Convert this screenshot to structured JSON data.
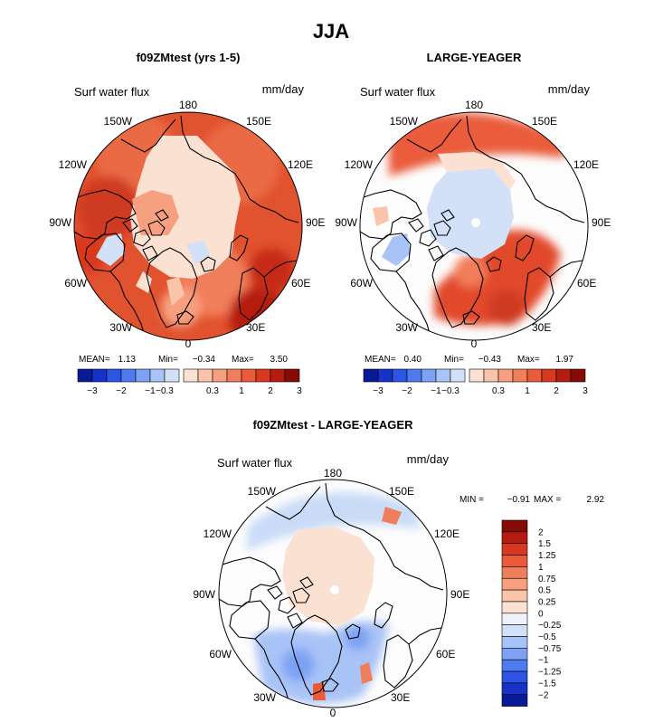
{
  "page_title": "JJA",
  "colors": {
    "blues": [
      "#081a96",
      "#1632c8",
      "#2c55e6",
      "#4f7bf0",
      "#7da2f4",
      "#a8c3f6",
      "#d2e1f8"
    ],
    "reds": [
      "#fbe1d2",
      "#f9c4aa",
      "#f6a080",
      "#f17e5a",
      "#ea5b3a",
      "#d9371f",
      "#b51c10",
      "#860b05"
    ],
    "diff_scale": [
      "#081a96",
      "#1632c8",
      "#2c55e6",
      "#4f7bf0",
      "#7da2f4",
      "#a8c3f6",
      "#d2e1f8",
      "#eef3fb",
      "#fbe1d2",
      "#f9c4aa",
      "#f6a080",
      "#f17e5a",
      "#ea5b3a",
      "#d9371f",
      "#b51c10",
      "#860b05"
    ],
    "land": "#fdfdfd",
    "coast": "#000000"
  },
  "chart_data": [
    {
      "type": "heatmap",
      "projection": "north-polar-stereographic",
      "title": "f09ZMtest (yrs 1-5)",
      "variable": "Surf water flux",
      "units": "mm/day",
      "lon_labels": [
        "180",
        "150E",
        "120E",
        "90E",
        "60E",
        "30E",
        "0",
        "30W",
        "60W",
        "90W",
        "120W",
        "150W"
      ],
      "stats": {
        "mean_label": "MEAN=",
        "mean": "1.13",
        "min_label": "Min=",
        "min": "−0.34",
        "max_label": "Max=",
        "max": "3.50"
      },
      "colorbar_ticks": [
        "−3",
        "−2",
        "−1",
        "−0.3",
        "0.3",
        "1",
        "2",
        "3"
      ],
      "pattern": "mostly positive flux across the Arctic; strongest over Eurasia and North Atlantic"
    },
    {
      "type": "heatmap",
      "projection": "north-polar-stereographic",
      "title": "LARGE-YEAGER",
      "variable": "Surf water flux",
      "units": "mm/day",
      "lon_labels": [
        "180",
        "150E",
        "120E",
        "90E",
        "60E",
        "30E",
        "0",
        "30W",
        "60W",
        "90W",
        "120W",
        "150W"
      ],
      "stats": {
        "mean_label": "MEAN=",
        "mean": "0.40",
        "min_label": "Min=",
        "min": "−0.43",
        "max_label": "Max=",
        "max": "1.97"
      },
      "colorbar_ticks": [
        "−3",
        "−2",
        "−1",
        "−0.3",
        "0.3",
        "1",
        "2",
        "3"
      ],
      "pattern": "ocean-only field; weakly negative over central Arctic, positive over North Atlantic and North Pacific"
    },
    {
      "type": "heatmap",
      "projection": "north-polar-stereographic",
      "title": "f09ZMtest - LARGE-YEAGER",
      "variable": "Surf water flux",
      "units": "mm/day",
      "lon_labels": [
        "180",
        "150E",
        "120E",
        "90E",
        "60E",
        "30E",
        "0",
        "30W",
        "60W",
        "90W",
        "120W",
        "150W"
      ],
      "stats": {
        "min_label": "MIN =",
        "min": "−0.91",
        "max_label": "MAX =",
        "max": "2.92"
      },
      "colorbar_ticks": [
        "2",
        "1.5",
        "1.25",
        "1",
        "0.75",
        "0.5",
        "0.25",
        "0",
        "−0.25",
        "−0.5",
        "−0.75",
        "−1",
        "−1.25",
        "−1.5",
        "−2"
      ],
      "pattern": "small positive differences over central Arctic, negative differences over North Atlantic and North Pacific"
    }
  ]
}
